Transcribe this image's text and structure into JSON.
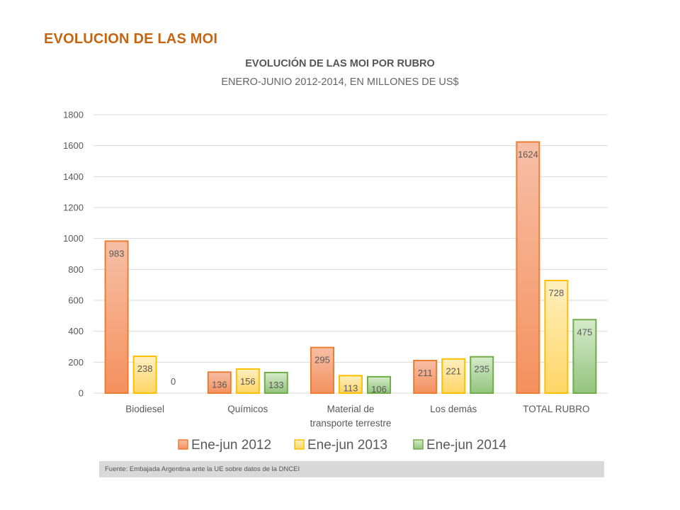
{
  "slide": {
    "title": "EVOLUCION DE LAS MOI",
    "title_color": "#c5650f"
  },
  "footer": {
    "source": "Fuente: Embajada  Argentina ante la UE sobre datos de la DNCEI"
  },
  "chart_data": {
    "type": "bar",
    "title": "EVOLUCIÓN DE LAS MOI POR RUBRO",
    "subtitle": "ENERO-JUNIO 2012-2014, EN MILLONES DE US$",
    "xlabel": "",
    "ylabel": "",
    "ylim": [
      0,
      1800
    ],
    "yticks": [
      0,
      200,
      400,
      600,
      800,
      1000,
      1200,
      1400,
      1600,
      1800
    ],
    "grid": true,
    "legend_position": "bottom",
    "categories": [
      [
        "Biodiesel"
      ],
      [
        "Químicos"
      ],
      [
        "Material de",
        "transporte terrestre"
      ],
      [
        "Los demás"
      ],
      [
        "TOTAL RUBRO"
      ]
    ],
    "series": [
      {
        "name": "Ene-jun 2012",
        "values": [
          983,
          136,
          295,
          211,
          1624
        ],
        "fill_top": "#f7bfa7",
        "fill_bottom": "#f4915e",
        "stroke": "#ed7d31"
      },
      {
        "name": "Ene-jun 2013",
        "values": [
          238,
          156,
          113,
          221,
          728
        ],
        "fill_top": "#fff0c0",
        "fill_bottom": "#ffd666",
        "stroke": "#ffc000"
      },
      {
        "name": "Ene-jun 2014",
        "values": [
          0,
          133,
          106,
          235,
          475
        ],
        "fill_top": "#d6ebcb",
        "fill_bottom": "#93c47d",
        "stroke": "#70ad47"
      }
    ]
  }
}
